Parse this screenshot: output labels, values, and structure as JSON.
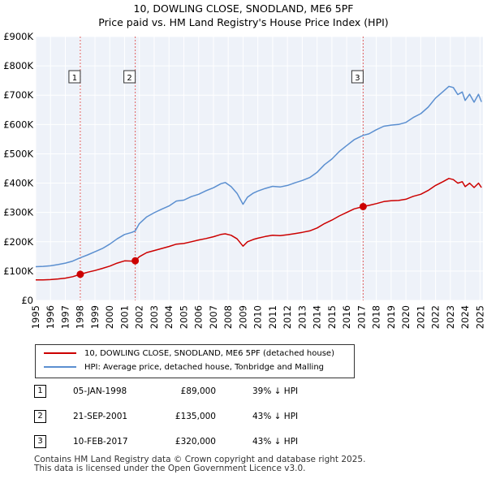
{
  "chart_data": {
    "type": "line",
    "title": "10, DOWLING CLOSE, SNODLAND, ME6 5PF",
    "subtitle": "Price paid vs. HM Land Registry's House Price Index (HPI)",
    "xlim": [
      1995,
      2025.2
    ],
    "ylim": [
      0,
      900000
    ],
    "x_ticks": [
      1995,
      1996,
      1997,
      1998,
      1999,
      2000,
      2001,
      2002,
      2003,
      2004,
      2005,
      2006,
      2007,
      2008,
      2009,
      2010,
      2011,
      2012,
      2013,
      2014,
      2015,
      2016,
      2017,
      2018,
      2019,
      2020,
      2021,
      2022,
      2023,
      2024,
      2025
    ],
    "y_ticks": [
      {
        "value": 0,
        "label": "£0"
      },
      {
        "value": 100000,
        "label": "£100K"
      },
      {
        "value": 200000,
        "label": "£200K"
      },
      {
        "value": 300000,
        "label": "£300K"
      },
      {
        "value": 400000,
        "label": "£400K"
      },
      {
        "value": 500000,
        "label": "£500K"
      },
      {
        "value": 600000,
        "label": "£600K"
      },
      {
        "value": 700000,
        "label": "£700K"
      },
      {
        "value": 800000,
        "label": "£800K"
      },
      {
        "value": 900000,
        "label": "£900K"
      }
    ],
    "grid": true,
    "series": [
      {
        "name": "10, DOWLING CLOSE, SNODLAND, ME6 5PF (detached house)",
        "color": "#cc0000",
        "x": [
          1995.0,
          1995.5,
          1996.0,
          1996.5,
          1997.0,
          1997.5,
          1998.01,
          1998.5,
          1999.0,
          1999.5,
          2000.0,
          2000.5,
          2001.0,
          2001.5,
          2001.72,
          2002.0,
          2002.5,
          2003.0,
          2003.5,
          2004.0,
          2004.5,
          2005.0,
          2005.5,
          2006.0,
          2006.5,
          2007.0,
          2007.5,
          2007.8,
          2008.2,
          2008.6,
          2009.0,
          2009.3,
          2009.7,
          2010.0,
          2010.5,
          2011.0,
          2011.5,
          2012.0,
          2012.5,
          2013.0,
          2013.5,
          2014.0,
          2014.5,
          2015.0,
          2015.5,
          2016.0,
          2016.5,
          2017.11,
          2017.5,
          2018.0,
          2018.5,
          2019.0,
          2019.5,
          2020.0,
          2020.5,
          2021.0,
          2021.5,
          2022.0,
          2022.5,
          2022.9,
          2023.2,
          2023.5,
          2023.8,
          2024.0,
          2024.3,
          2024.6,
          2024.9,
          2025.1
        ],
        "values": [
          70000,
          70000,
          71000,
          73000,
          76000,
          81000,
          89000,
          96000,
          102000,
          109000,
          117000,
          127000,
          135000,
          134000,
          135000,
          149000,
          163000,
          170000,
          177000,
          184000,
          192000,
          194000,
          200000,
          206000,
          211000,
          217000,
          225000,
          227000,
          222000,
          210000,
          185000,
          200000,
          208000,
          212000,
          218000,
          222000,
          221000,
          224000,
          228000,
          232000,
          237000,
          247000,
          262000,
          274000,
          288000,
          300000,
          312000,
          320000,
          324000,
          330000,
          337000,
          340000,
          341000,
          345000,
          355000,
          362000,
          375000,
          392000,
          405000,
          416000,
          412000,
          400000,
          405000,
          388000,
          400000,
          385000,
          400000,
          385000
        ]
      },
      {
        "name": "HPI: Average price, detached house, Tonbridge and Malling",
        "color": "#5b8fd0",
        "x": [
          1995.0,
          1995.5,
          1996.0,
          1996.5,
          1997.0,
          1997.5,
          1998.0,
          1998.5,
          1999.0,
          1999.5,
          2000.0,
          2000.5,
          2001.0,
          2001.5,
          2001.72,
          2002.0,
          2002.5,
          2003.0,
          2003.5,
          2004.0,
          2004.5,
          2005.0,
          2005.5,
          2006.0,
          2006.5,
          2007.0,
          2007.5,
          2007.8,
          2008.2,
          2008.6,
          2009.0,
          2009.3,
          2009.7,
          2010.0,
          2010.5,
          2011.0,
          2011.5,
          2012.0,
          2012.5,
          2013.0,
          2013.5,
          2014.0,
          2014.5,
          2015.0,
          2015.5,
          2016.0,
          2016.5,
          2017.11,
          2017.5,
          2018.0,
          2018.5,
          2019.0,
          2019.5,
          2020.0,
          2020.5,
          2021.0,
          2021.5,
          2022.0,
          2022.5,
          2022.9,
          2023.2,
          2023.5,
          2023.8,
          2024.0,
          2024.3,
          2024.6,
          2024.9,
          2025.1
        ],
        "values": [
          115000,
          116000,
          118000,
          122000,
          127000,
          134000,
          145000,
          155000,
          166000,
          177000,
          192000,
          210000,
          225000,
          232000,
          237000,
          262000,
          285000,
          299000,
          311000,
          322000,
          339000,
          342000,
          354000,
          362000,
          374000,
          384000,
          398000,
          402000,
          388000,
          365000,
          328000,
          352000,
          366000,
          373000,
          382000,
          389000,
          387000,
          392000,
          401000,
          409000,
          419000,
          437000,
          463000,
          482000,
          508000,
          528000,
          548000,
          563000,
          568000,
          582000,
          594000,
          598000,
          600000,
          607000,
          624000,
          637000,
          659000,
          690000,
          712000,
          730000,
          726000,
          702000,
          711000,
          682000,
          703000,
          676000,
          703000,
          677000
        ]
      }
    ],
    "sales": [
      {
        "label": "1",
        "x": 1998.01,
        "value": 89000
      },
      {
        "label": "2",
        "x": 2001.72,
        "value": 135000
      },
      {
        "label": "3",
        "x": 2017.11,
        "value": 320000
      }
    ]
  },
  "title_line1": "10, DOWLING CLOSE, SNODLAND, ME6 5PF",
  "title_line2": "Price paid vs. HM Land Registry's House Price Index (HPI)",
  "legend": {
    "red_label": "10, DOWLING CLOSE, SNODLAND, ME6 5PF (detached house)",
    "blue_label": "HPI: Average price, detached house, Tonbridge and Malling"
  },
  "sales_table": [
    {
      "num": "1",
      "date": "05-JAN-1998",
      "price": "£89,000",
      "hpi": "39% ↓ HPI"
    },
    {
      "num": "2",
      "date": "21-SEP-2001",
      "price": "£135,000",
      "hpi": "43% ↓ HPI"
    },
    {
      "num": "3",
      "date": "10-FEB-2017",
      "price": "£320,000",
      "hpi": "43% ↓ HPI"
    }
  ],
  "footer": {
    "line1": "Contains HM Land Registry data © Crown copyright and database right 2025.",
    "line2": "This data is licensed under the Open Government Licence v3.0."
  }
}
